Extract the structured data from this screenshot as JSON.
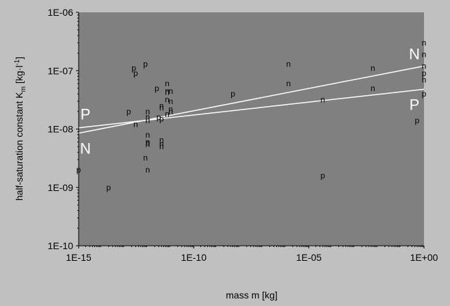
{
  "chart_data": {
    "type": "scatter",
    "title": "",
    "xlabel": "mass m [kg]",
    "ylabel": "half-saturation constant K",
    "ylabel_sub": "m",
    "ylabel_unit": " [kg·l",
    "ylabel_sup": "-1",
    "ylabel_close": "]",
    "x_scale": "log",
    "y_scale": "log",
    "xlim": [
      1e-15,
      1
    ],
    "ylim": [
      1e-10,
      1e-06
    ],
    "x_ticks": [
      1e-15,
      1e-10,
      1e-05,
      1
    ],
    "x_tick_labels": [
      "1E-15",
      "1E-10",
      "1E-05",
      "1E+00"
    ],
    "y_ticks": [
      1e-10,
      1e-09,
      1e-08,
      1e-07,
      1e-06
    ],
    "y_tick_labels": [
      "1E-10",
      "1E-09",
      "1E-08",
      "1E-07",
      "1E-06"
    ],
    "grid": false,
    "legend": "none",
    "colors": {
      "outer_background": "#c0c0c0",
      "plot_background": "#808080",
      "marker_text": "#000000",
      "regression_line": "#ffffff",
      "axis": "#000000",
      "border": "#000000"
    },
    "series": [
      {
        "marker": "n",
        "points": [
          [
            3e-13,
            1.2e-08
          ],
          [
            1e-12,
            2e-08
          ],
          [
            1e-12,
            1.6e-08
          ],
          [
            1e-12,
            1.4e-08
          ],
          [
            1e-12,
            8e-09
          ],
          [
            1e-12,
            6e-09
          ],
          [
            1e-12,
            5.5e-09
          ],
          [
            1e-12,
            2e-09
          ],
          [
            8e-13,
            3.2e-09
          ],
          [
            4e-12,
            2.5e-08
          ],
          [
            4e-12,
            2.3e-08
          ],
          [
            4e-12,
            6.5e-09
          ],
          [
            4e-12,
            5.5e-09
          ],
          [
            4e-12,
            5e-09
          ],
          [
            7e-12,
            6e-08
          ],
          [
            7e-12,
            4.5e-08
          ],
          [
            7e-12,
            4.3e-08
          ],
          [
            7e-12,
            3.2e-08
          ],
          [
            7e-12,
            1.8e-08
          ],
          [
            1e-11,
            4.5e-08
          ],
          [
            1e-11,
            3e-08
          ],
          [
            1e-11,
            2.2e-08
          ],
          [
            1e-11,
            2e-08
          ],
          [
            1.3e-06,
            1.3e-07
          ],
          [
            1.3e-06,
            6e-08
          ],
          [
            4e-05,
            3.2e-08
          ],
          [
            0.006,
            1.1e-07
          ],
          [
            0.006,
            5e-08
          ],
          [
            1,
            3e-07
          ],
          [
            1,
            1.9e-07
          ],
          [
            1,
            1.2e-07
          ],
          [
            1,
            7e-08
          ]
        ]
      },
      {
        "marker": "p",
        "points": [
          [
            1e-15,
            2e-09
          ],
          [
            2e-14,
            1e-09
          ],
          [
            1.5e-13,
            2e-08
          ],
          [
            3e-13,
            9e-08
          ],
          [
            2.5e-13,
            1.1e-07
          ],
          [
            8e-13,
            1.3e-07
          ],
          [
            2.5e-12,
            5e-08
          ],
          [
            3e-12,
            1.6e-08
          ],
          [
            4e-12,
            1.5e-08
          ],
          [
            1e-12,
            5.8e-09
          ],
          [
            5e-09,
            4e-08
          ],
          [
            4e-05,
            1.6e-09
          ],
          [
            0.5,
            1.4e-08
          ],
          [
            1,
            9e-08
          ],
          [
            1,
            4e-08
          ]
        ]
      }
    ],
    "regression_lines": [
      {
        "label": "N",
        "x": [
          1e-15,
          1
        ],
        "y": [
          8.5e-09,
          1.2e-07
        ]
      },
      {
        "label": "P",
        "x": [
          1e-15,
          1
        ],
        "y": [
          1.05e-08,
          4.8e-08
        ]
      }
    ],
    "line_labels": [
      "P",
      "N",
      "N",
      "P"
    ]
  }
}
